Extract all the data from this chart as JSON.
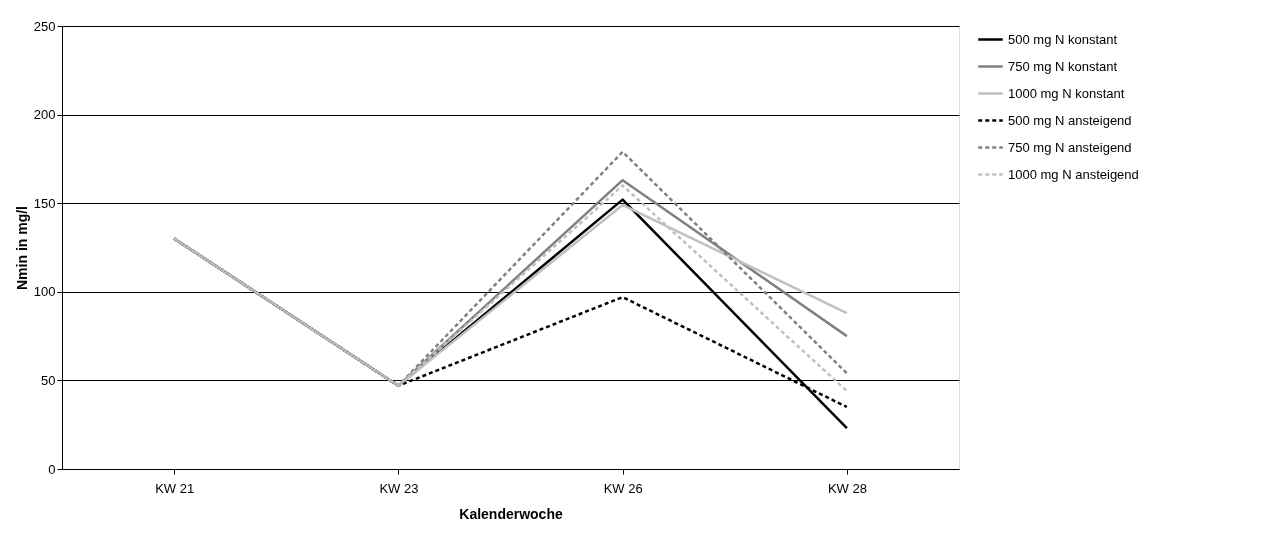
{
  "chart_data": {
    "type": "line",
    "xlabel": "Kalenderwoche",
    "ylabel": "Nmin in mg/l",
    "categories": [
      "KW 21",
      "KW 23",
      "KW 26",
      "KW 28"
    ],
    "ylim": [
      0,
      250
    ],
    "yticks": [
      0,
      50,
      100,
      150,
      200,
      250
    ],
    "grid": "y",
    "legend": "right",
    "marker": "none",
    "series": [
      {
        "name": "500 mg N konstant",
        "color": "#000000",
        "line_style": "solid",
        "values": [
          130,
          47,
          152,
          23
        ]
      },
      {
        "name": "750 mg N konstant",
        "color": "#808080",
        "line_style": "solid",
        "values": [
          130,
          47,
          163,
          75
        ]
      },
      {
        "name": "1000 mg N konstant",
        "color": "#c0c0c0",
        "line_style": "solid",
        "values": [
          130,
          47,
          149,
          88
        ]
      },
      {
        "name": "500 mg N ansteigend",
        "color": "#000000",
        "line_style": "dashed",
        "values": [
          130,
          47,
          97,
          35
        ]
      },
      {
        "name": "750 mg N ansteigend",
        "color": "#808080",
        "line_style": "dashed",
        "values": [
          130,
          47,
          179,
          54
        ]
      },
      {
        "name": "1000 mg N ansteigend",
        "color": "#c0c0c0",
        "line_style": "dashed",
        "values": [
          130,
          47,
          160,
          44
        ]
      }
    ]
  }
}
